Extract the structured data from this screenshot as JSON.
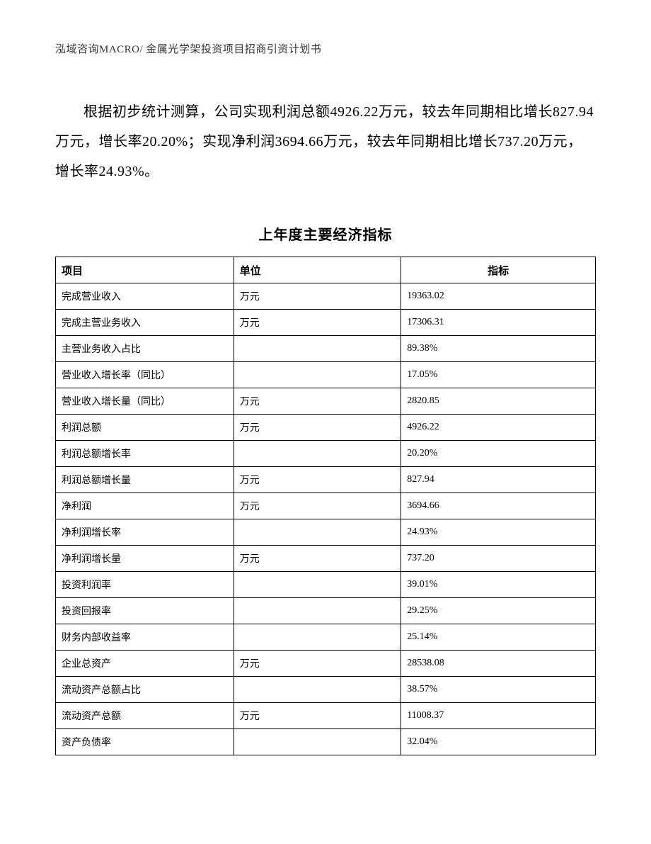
{
  "header": "泓域咨询MACRO/ 金属光学架投资项目招商引资计划书",
  "paragraph": "根据初步统计测算，公司实现利润总额4926.22万元，较去年同期相比增长827.94万元，增长率20.20%；实现净利润3694.66万元，较去年同期相比增长737.20万元，增长率24.93%。",
  "table": {
    "title": "上年度主要经济指标",
    "columns": [
      "项目",
      "单位",
      "指标"
    ],
    "rows": [
      [
        "完成营业收入",
        "万元",
        "19363.02"
      ],
      [
        "完成主营业务收入",
        "万元",
        "17306.31"
      ],
      [
        "主营业务收入占比",
        "",
        "89.38%"
      ],
      [
        "营业收入增长率（同比）",
        "",
        "17.05%"
      ],
      [
        "营业收入增长量（同比）",
        "万元",
        "2820.85"
      ],
      [
        "利润总额",
        "万元",
        "4926.22"
      ],
      [
        "利润总额增长率",
        "",
        "20.20%"
      ],
      [
        "利润总额增长量",
        "万元",
        "827.94"
      ],
      [
        "净利润",
        "万元",
        "3694.66"
      ],
      [
        "净利润增长率",
        "",
        "24.93%"
      ],
      [
        "净利润增长量",
        "万元",
        "737.20"
      ],
      [
        "投资利润率",
        "",
        "39.01%"
      ],
      [
        "投资回报率",
        "",
        "29.25%"
      ],
      [
        "财务内部收益率",
        "",
        "25.14%"
      ],
      [
        "企业总资产",
        "万元",
        "28538.08"
      ],
      [
        "流动资产总额占比",
        "",
        "38.57%"
      ],
      [
        "流动资产总额",
        "万元",
        "11008.37"
      ],
      [
        "资产负债率",
        "",
        "32.04%"
      ]
    ]
  }
}
